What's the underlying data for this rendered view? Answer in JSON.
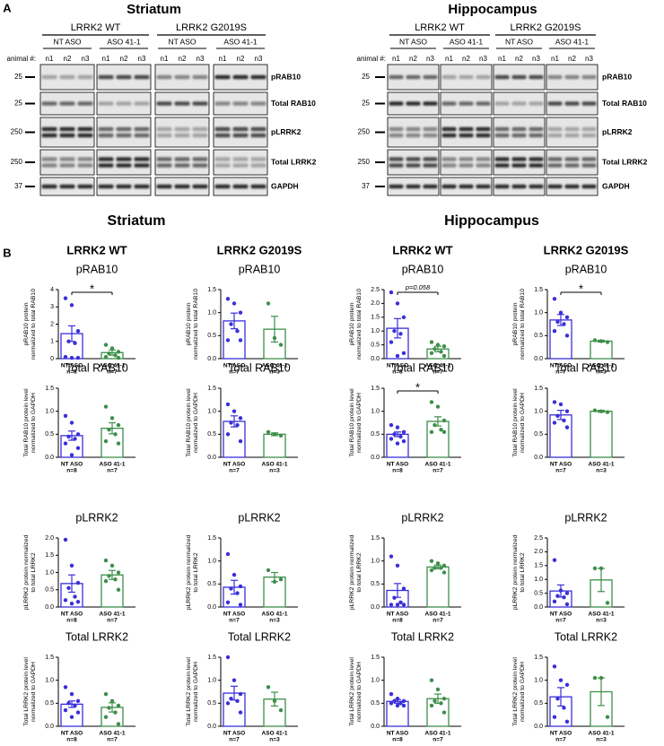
{
  "panel_a": {
    "label": "A",
    "animal_label": "animal #:",
    "lanes": [
      "n1",
      "n2",
      "n3"
    ],
    "markers": [
      "25",
      "25",
      "250",
      "250",
      "37"
    ],
    "proteins": [
      "pRAB10",
      "Total RAB10",
      "pLRRK2",
      "Total LRRK2",
      "GAPDH"
    ],
    "treatments": [
      "NT ASO",
      "ASO 41-1"
    ],
    "genotypes": [
      "LRRK2 WT",
      "LRRK2 G2019S"
    ],
    "regions": [
      "Striatum",
      "Hippocampus"
    ]
  },
  "panel_b": {
    "label": "B",
    "regions": [
      "Striatum",
      "Hippocampus"
    ],
    "genotypes": [
      "LRRK2 WT",
      "LRRK2 G2019S",
      "LRRK2 WT",
      "LRRK2 G2019S"
    ]
  },
  "chart_data": [
    {
      "type": "bar",
      "title": "pRAB10",
      "ylabel": [
        "pRAB10 protein",
        "normalized to total RAB10"
      ],
      "categories": [
        "NT ASO",
        "ASO 41-1"
      ],
      "n_labels": [
        "n=8",
        "n=7"
      ],
      "values": [
        1.45,
        0.35
      ],
      "errors": [
        0.45,
        0.15
      ],
      "points": [
        [
          3.5,
          3.1,
          1.6,
          1.0,
          0.9,
          0.1,
          0.05,
          0.05
        ],
        [
          0.8,
          0.6,
          0.4,
          0.3,
          0.2,
          0.1,
          0.05
        ]
      ],
      "colors": [
        "#3a2fd9",
        "#3d8f4a"
      ],
      "ylim": [
        0,
        4
      ],
      "yticks": [
        0,
        1,
        2,
        3,
        4
      ],
      "annotation": "*"
    },
    {
      "type": "bar",
      "title": "pRAB10",
      "ylabel": [
        "pRAB10 protein",
        "normalized to total RAB10"
      ],
      "categories": [
        "NT ASO",
        "ASO 41-1"
      ],
      "n_labels": [
        "n=7",
        "n=3"
      ],
      "values": [
        0.82,
        0.64
      ],
      "errors": [
        0.17,
        0.28
      ],
      "points": [
        [
          1.3,
          1.2,
          1.0,
          0.75,
          0.6,
          0.4,
          0.4
        ],
        [
          1.2,
          0.45,
          0.3
        ]
      ],
      "colors": [
        "#3a2fd9",
        "#3d8f4a"
      ],
      "ylim": [
        0,
        1.5
      ],
      "yticks": [
        {
          "value": 0,
          "label": "0.0"
        },
        0.5,
        {
          "value": 1,
          "label": "1.0"
        },
        1.5
      ]
    },
    {
      "type": "bar",
      "title": "pRAB10",
      "ylabel": [
        "pRAB10 protein",
        "normalized to total RAB10"
      ],
      "categories": [
        "NT ASO",
        "ASO 41-1"
      ],
      "n_labels": [
        "n=8",
        "n=7"
      ],
      "values": [
        1.1,
        0.35
      ],
      "errors": [
        0.35,
        0.1
      ],
      "points": [
        [
          2.4,
          2.0,
          1.5,
          1.0,
          0.9,
          0.6,
          0.2,
          0.1
        ],
        [
          0.6,
          0.5,
          0.45,
          0.35,
          0.25,
          0.2,
          0.1
        ]
      ],
      "colors": [
        "#3a2fd9",
        "#3d8f4a"
      ],
      "ylim": [
        0,
        2.5
      ],
      "yticks": [
        {
          "value": 0,
          "label": "0.0"
        },
        0.5,
        {
          "value": 1,
          "label": "1.0"
        },
        1.5,
        {
          "value": 2,
          "label": "2.0"
        },
        2.5
      ],
      "annotation": "p=0.058"
    },
    {
      "type": "bar",
      "title": "pRAB10",
      "ylabel": [
        "pRAB10 protein",
        "normalized to total RAB10"
      ],
      "categories": [
        "NT ASO",
        "ASO 41-1"
      ],
      "n_labels": [
        "n=7",
        "n=3"
      ],
      "values": [
        0.84,
        0.38
      ],
      "errors": [
        0.12,
        0.02
      ],
      "points": [
        [
          1.3,
          1.0,
          0.9,
          0.8,
          0.75,
          0.6,
          0.5
        ],
        [
          0.4,
          0.38,
          0.36
        ]
      ],
      "colors": [
        "#3a2fd9",
        "#3d8f4a"
      ],
      "ylim": [
        0,
        1.5
      ],
      "yticks": [
        {
          "value": 0,
          "label": "0.0"
        },
        0.5,
        {
          "value": 1,
          "label": "1.0"
        },
        1.5
      ],
      "annotation": "*"
    },
    {
      "type": "bar",
      "title": "Total RAB10",
      "ylabel": [
        "Total RAB10 protein level",
        "normalized to GAPDH"
      ],
      "categories": [
        "NT ASO",
        "ASO 41-1"
      ],
      "n_labels": [
        "n=8",
        "n=7"
      ],
      "values": [
        0.47,
        0.63
      ],
      "errors": [
        0.1,
        0.12
      ],
      "points": [
        [
          0.9,
          0.75,
          0.5,
          0.45,
          0.4,
          0.3,
          0.2,
          0.05
        ],
        [
          1.1,
          0.85,
          0.7,
          0.6,
          0.5,
          0.35,
          0.3
        ]
      ],
      "colors": [
        "#3a2fd9",
        "#3d8f4a"
      ],
      "ylim": [
        0,
        1.5
      ],
      "yticks": [
        {
          "value": 0,
          "label": "0.0"
        },
        0.5,
        {
          "value": 1,
          "label": "1.0"
        },
        1.5
      ]
    },
    {
      "type": "bar",
      "title": "Total RAB10",
      "ylabel": [
        "Total RAB10 protein level",
        "normalized to GAPDH"
      ],
      "categories": [
        "NT ASO",
        "ASO 41-1"
      ],
      "n_labels": [
        "n=7",
        "n=3"
      ],
      "values": [
        0.78,
        0.5
      ],
      "errors": [
        0.12,
        0.03
      ],
      "points": [
        [
          1.15,
          1.0,
          0.85,
          0.75,
          0.7,
          0.5,
          0.35
        ],
        [
          0.55,
          0.5,
          0.47
        ]
      ],
      "colors": [
        "#3a2fd9",
        "#3d8f4a"
      ],
      "ylim": [
        0,
        1.5
      ],
      "yticks": [
        {
          "value": 0,
          "label": "0.0"
        },
        0.5,
        {
          "value": 1,
          "label": "1.0"
        },
        1.5
      ]
    },
    {
      "type": "bar",
      "title": "Total RAB10",
      "ylabel": [
        "Total RAB10 protein level",
        "normalized to GAPDH"
      ],
      "categories": [
        "NT ASO",
        "ASO 41-1"
      ],
      "n_labels": [
        "n=8",
        "n=7"
      ],
      "values": [
        0.5,
        0.78
      ],
      "errors": [
        0.05,
        0.1
      ],
      "points": [
        [
          0.7,
          0.65,
          0.55,
          0.5,
          0.45,
          0.4,
          0.35,
          0.3
        ],
        [
          1.2,
          1.1,
          0.8,
          0.7,
          0.6,
          0.55,
          0.55
        ]
      ],
      "colors": [
        "#3a2fd9",
        "#3d8f4a"
      ],
      "ylim": [
        0,
        1.5
      ],
      "yticks": [
        {
          "value": 0,
          "label": "0.0"
        },
        0.5,
        {
          "value": 1,
          "label": "1.0"
        },
        1.5
      ],
      "annotation": "*"
    },
    {
      "type": "bar",
      "title": "Total RAB10",
      "ylabel": [
        "Total RAB10 protein level",
        "normalized to GAPDH"
      ],
      "categories": [
        "NT ASO",
        "ASO 41-1"
      ],
      "n_labels": [
        "n=7",
        "n=3"
      ],
      "values": [
        0.92,
        1.0
      ],
      "errors": [
        0.1,
        0.02
      ],
      "points": [
        [
          1.2,
          1.15,
          1.0,
          0.9,
          0.8,
          0.75,
          0.65
        ],
        [
          1.02,
          1.0,
          0.98
        ]
      ],
      "colors": [
        "#3a2fd9",
        "#3d8f4a"
      ],
      "ylim": [
        0,
        1.5
      ],
      "yticks": [
        {
          "value": 0,
          "label": "0.0"
        },
        0.5,
        {
          "value": 1,
          "label": "1.0"
        },
        1.5
      ]
    },
    {
      "type": "bar",
      "title": "pLRRK2",
      "ylabel": [
        "pLRRK2 protein normalized",
        "to total LRRK2"
      ],
      "categories": [
        "NT ASO",
        "ASO 41-1"
      ],
      "n_labels": [
        "n=8",
        "n=7"
      ],
      "values": [
        0.68,
        0.93
      ],
      "errors": [
        0.25,
        0.13
      ],
      "points": [
        [
          1.95,
          1.2,
          0.7,
          0.55,
          0.3,
          0.2,
          0.15,
          0.1
        ],
        [
          1.35,
          1.2,
          1.0,
          0.9,
          0.8,
          0.75,
          0.5
        ]
      ],
      "colors": [
        "#3a2fd9",
        "#3d8f4a"
      ],
      "ylim": [
        0,
        2
      ],
      "yticks": [
        {
          "value": 0,
          "label": "0.0"
        },
        0.5,
        {
          "value": 1,
          "label": "1.0"
        },
        1.5,
        {
          "value": 2,
          "label": "2.0"
        }
      ]
    },
    {
      "type": "bar",
      "title": "pLRRK2",
      "ylabel": [
        "pLRRK2 protein normalized",
        "to total LRRK2"
      ],
      "categories": [
        "NT ASO",
        "ASO 41-1"
      ],
      "n_labels": [
        "n=7",
        "n=3"
      ],
      "values": [
        0.43,
        0.65
      ],
      "errors": [
        0.15,
        0.1
      ],
      "points": [
        [
          1.15,
          0.7,
          0.45,
          0.4,
          0.3,
          0.1,
          0.05
        ],
        [
          0.8,
          0.55,
          0.6
        ]
      ],
      "colors": [
        "#3a2fd9",
        "#3d8f4a"
      ],
      "ylim": [
        0,
        1.5
      ],
      "yticks": [
        {
          "value": 0,
          "label": "0.0"
        },
        0.5,
        {
          "value": 1,
          "label": "1.0"
        },
        1.5
      ]
    },
    {
      "type": "bar",
      "title": "pLRRK2",
      "ylabel": [
        "pLRRK2 protein normalized",
        "to total LRRK2"
      ],
      "categories": [
        "NT ASO",
        "ASO 41-1"
      ],
      "n_labels": [
        "n=8",
        "n=7"
      ],
      "values": [
        0.36,
        0.87
      ],
      "errors": [
        0.15,
        0.04
      ],
      "points": [
        [
          1.1,
          0.9,
          0.4,
          0.2,
          0.1,
          0.05,
          0.05,
          0.05
        ],
        [
          1.0,
          0.95,
          0.9,
          0.85,
          0.85,
          0.8,
          0.75
        ]
      ],
      "colors": [
        "#3a2fd9",
        "#3d8f4a"
      ],
      "ylim": [
        0,
        1.5
      ],
      "yticks": [
        {
          "value": 0,
          "label": "0.0"
        },
        0.5,
        {
          "value": 1,
          "label": "1.0"
        },
        1.5
      ]
    },
    {
      "type": "bar",
      "title": "pLRRK2",
      "ylabel": [
        "pLRRK2 protein normalized",
        "to total LRRK2"
      ],
      "categories": [
        "NT ASO",
        "ASO 41-1"
      ],
      "n_labels": [
        "n=7",
        "n=3"
      ],
      "values": [
        0.58,
        0.98
      ],
      "errors": [
        0.22,
        0.42
      ],
      "points": [
        [
          1.7,
          0.6,
          0.5,
          0.4,
          0.35,
          0.2,
          0.1
        ],
        [
          1.4,
          1.4,
          0.15
        ]
      ],
      "colors": [
        "#3a2fd9",
        "#3d8f4a"
      ],
      "ylim": [
        0,
        2.5
      ],
      "yticks": [
        {
          "value": 0,
          "label": "0.0"
        },
        0.5,
        {
          "value": 1,
          "label": "1.0"
        },
        1.5,
        {
          "value": 2,
          "label": "2.0"
        },
        2.5
      ]
    },
    {
      "type": "bar",
      "title": "Total LRRK2",
      "ylabel": [
        "Total LRRK2 protein level",
        "normalized to GAPDH"
      ],
      "categories": [
        "NT ASO",
        "ASO 41-1"
      ],
      "n_labels": [
        "n=8",
        "n=7"
      ],
      "values": [
        0.48,
        0.41
      ],
      "errors": [
        0.07,
        0.1
      ],
      "points": [
        [
          0.85,
          0.7,
          0.55,
          0.5,
          0.45,
          0.35,
          0.3,
          0.2
        ],
        [
          0.7,
          0.55,
          0.45,
          0.4,
          0.3,
          0.2,
          0.05
        ]
      ],
      "colors": [
        "#3a2fd9",
        "#3d8f4a"
      ],
      "ylim": [
        0,
        1.5
      ],
      "yticks": [
        {
          "value": 0,
          "label": "0.0"
        },
        0.5,
        {
          "value": 1,
          "label": "1.0"
        },
        1.5
      ]
    },
    {
      "type": "bar",
      "title": "Total LRRK2",
      "ylabel": [
        "Total LRRK2 protein level",
        "normalized to GAPDH"
      ],
      "categories": [
        "NT ASO",
        "ASO 41-1"
      ],
      "n_labels": [
        "n=7",
        "n=3"
      ],
      "values": [
        0.72,
        0.59
      ],
      "errors": [
        0.15,
        0.15
      ],
      "points": [
        [
          1.5,
          1.0,
          0.7,
          0.6,
          0.55,
          0.5,
          0.3
        ],
        [
          0.85,
          0.55,
          0.35
        ]
      ],
      "colors": [
        "#3a2fd9",
        "#3d8f4a"
      ],
      "ylim": [
        0,
        1.5
      ],
      "yticks": [
        {
          "value": 0,
          "label": "0.0"
        },
        0.5,
        {
          "value": 1,
          "label": "1.0"
        },
        1.5
      ]
    },
    {
      "type": "bar",
      "title": "Total LRRK2",
      "ylabel": [
        "Total LRRK2 protein level",
        "normalized to GAPDH"
      ],
      "categories": [
        "NT ASO",
        "ASO 41-1"
      ],
      "n_labels": [
        "n=8",
        "n=7"
      ],
      "values": [
        0.54,
        0.6
      ],
      "errors": [
        0.04,
        0.1
      ],
      "points": [
        [
          0.7,
          0.6,
          0.55,
          0.55,
          0.5,
          0.5,
          0.45,
          0.45
        ],
        [
          1.0,
          0.8,
          0.6,
          0.55,
          0.5,
          0.45,
          0.3
        ]
      ],
      "colors": [
        "#3a2fd9",
        "#3d8f4a"
      ],
      "ylim": [
        0,
        1.5
      ],
      "yticks": [
        {
          "value": 0,
          "label": "0.0"
        },
        0.5,
        {
          "value": 1,
          "label": "1.0"
        },
        1.5
      ]
    },
    {
      "type": "bar",
      "title": "Total LRRK2",
      "ylabel": [
        "Total LRRK2 protein level",
        "normalized to GAPDH"
      ],
      "categories": [
        "NT ASO",
        "ASO 41-1"
      ],
      "n_labels": [
        "n=7",
        "n=3"
      ],
      "values": [
        0.64,
        0.75
      ],
      "errors": [
        0.2,
        0.3
      ],
      "points": [
        [
          1.3,
          1.0,
          0.9,
          0.6,
          0.4,
          0.2,
          0.1
        ],
        [
          1.05,
          1.05,
          0.2
        ]
      ],
      "colors": [
        "#3a2fd9",
        "#3d8f4a"
      ],
      "ylim": [
        0,
        1.5
      ],
      "yticks": [
        {
          "value": 0,
          "label": "0.0"
        },
        0.5,
        {
          "value": 1,
          "label": "1.0"
        },
        1.5
      ]
    }
  ]
}
